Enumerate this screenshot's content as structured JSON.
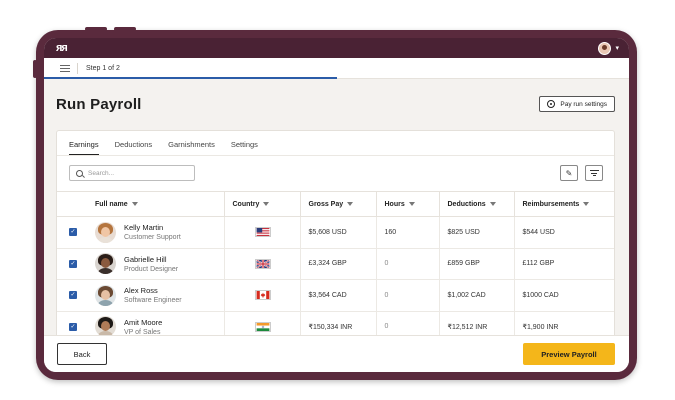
{
  "app": {
    "logo": "ᴙᴙ",
    "step": "Step 1 of 2",
    "progress_fraction": 0.5
  },
  "header": {
    "title": "Run Payroll",
    "settings_label": "Pay run settings"
  },
  "tabs": [
    {
      "label": "Earnings",
      "active": true
    },
    {
      "label": "Deductions",
      "active": false
    },
    {
      "label": "Garnishments",
      "active": false
    },
    {
      "label": "Settings",
      "active": false
    }
  ],
  "search": {
    "placeholder": "Search..."
  },
  "table": {
    "columns": [
      "Full name",
      "Country",
      "Gross Pay",
      "Hours",
      "Deductions",
      "Reimbursements"
    ],
    "rows": [
      {
        "name": "Kelly Martin",
        "role": "Customer Support",
        "country": "US",
        "gross": "$5,608 USD",
        "hours": "160",
        "deductions": "$825 USD",
        "reimbursements": "$544 USD"
      },
      {
        "name": "Gabrielle Hill",
        "role": "Product Designer",
        "country": "GB",
        "gross": "£3,324 GBP",
        "hours": "0",
        "deductions": "£859 GBP",
        "reimbursements": "£112 GBP"
      },
      {
        "name": "Alex Ross",
        "role": "Software Engineer",
        "country": "CA",
        "gross": "$3,564 CAD",
        "hours": "0",
        "deductions": "$1,002 CAD",
        "reimbursements": "$1000 CAD"
      },
      {
        "name": "Amit Moore",
        "role": "VP of Sales",
        "country": "IN",
        "gross": "₹150,334 INR",
        "hours": "0",
        "deductions": "₹12,512 INR",
        "reimbursements": "₹1,900 INR"
      }
    ]
  },
  "footer": {
    "back_label": "Back",
    "preview_label": "Preview Payroll"
  },
  "colors": {
    "frame": "#5a2a3d",
    "appbar": "#4a2234",
    "accent": "#2b5ca8",
    "primary_button": "#f4b61a"
  }
}
